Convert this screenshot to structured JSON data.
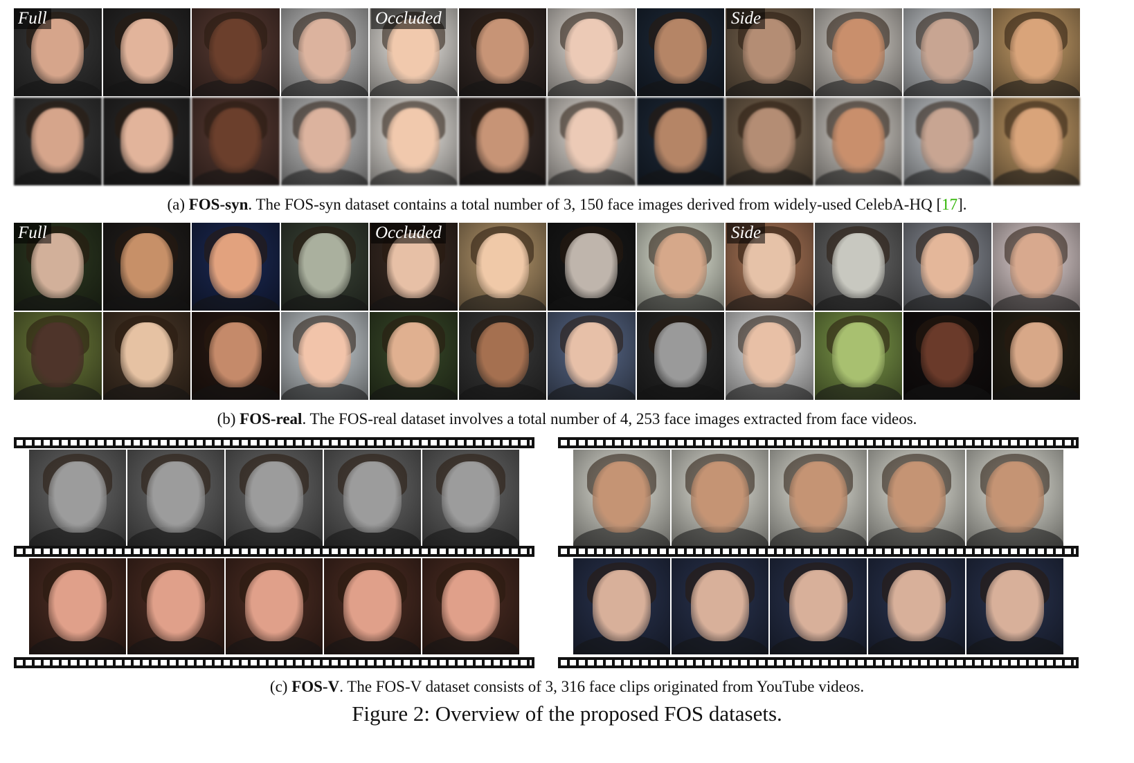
{
  "section_a": {
    "tags": [
      "Full",
      "Occluded",
      "Side"
    ],
    "caption_prefix": "(a) ",
    "caption_name": "FOS-syn",
    "caption_text": ". The FOS-syn dataset contains a total number of 3, 150 face images derived from widely-used CelebA-HQ [",
    "caption_ref": "17",
    "caption_suffix": "]."
  },
  "section_b": {
    "tags": [
      "Full",
      "Occluded",
      "Side"
    ],
    "caption_prefix": "(b) ",
    "caption_name": "FOS-real",
    "caption_text": ". The FOS-real dataset involves a total number of 4, 253 face images extracted from face videos."
  },
  "section_c": {
    "caption_prefix": "(c) ",
    "caption_name": "FOS-V",
    "caption_text": ". The FOS-V dataset consists of 3, 316 face clips originated from YouTube videos."
  },
  "figure_title": "Figure 2: Overview of the proposed FOS datasets.",
  "colors": {
    "ref_link": "#2db400",
    "syn_bg": [
      "#3a3a3a",
      "#2b2a2a",
      "#5a3c34",
      "#c8c8c8",
      "#f2eee8",
      "#3a2e2a",
      "#e9e3dc",
      "#1e2a3a",
      "#7a6650",
      "#d8d3cc",
      "#d0d4d8",
      "#c9a06a"
    ],
    "syn_skin": [
      "#d6a58b",
      "#e2b49b",
      "#6b3f2c",
      "#dcb39e",
      "#f1c9ad",
      "#c79476",
      "#eccab6",
      "#b58566",
      "#b48d74",
      "#c98f6c",
      "#c8a592",
      "#d9a47a"
    ],
    "real_bg_top": [
      "#2e3a22",
      "#23201e",
      "#1c2a55",
      "#3c4538",
      "#3b2c24",
      "#b99a6e",
      "#1a1a1a",
      "#e8ecdc",
      "#b07a5a",
      "#6a6a6a",
      "#8b8f98",
      "#e8d8d8"
    ],
    "real_skin_top": [
      "#d2b09a",
      "#c79068",
      "#e2a27e",
      "#aab09e",
      "#e7c0a6",
      "#f0c9a8",
      "#bfb5ac",
      "#d6a88a",
      "#e6c2a8",
      "#c8c8c0",
      "#e4b79a",
      "#d8a98e"
    ],
    "real_bg_bot": [
      "#6c7a3a",
      "#4d3a2a",
      "#2a1a14",
      "#cfd6da",
      "#3a4a2a",
      "#3b3b3b",
      "#5a6a8a",
      "#2a2a2a",
      "#e8e8e8",
      "#7e9a4a",
      "#151010",
      "#2a2418"
    ],
    "real_skin_bot": [
      "#4e342a",
      "#e6c2a3",
      "#c58a6a",
      "#f2c4aa",
      "#e0b090",
      "#a57050",
      "#e7c0a8",
      "#9a9a9a",
      "#e8c0a6",
      "#a8c070",
      "#6a3a2a",
      "#d8a888"
    ],
    "clip_einstein_bg": "#6a6a6a",
    "clip_einstein_face": "#9c9c9c",
    "clip_woman_bg": "#4e2e24",
    "clip_woman_face": "#e0a08a",
    "clip_boy_bg": "#e6e6dc",
    "clip_boy_face": "#c59474",
    "clip_lady_bg": "#2a3450",
    "clip_lady_face": "#d8b09a"
  }
}
